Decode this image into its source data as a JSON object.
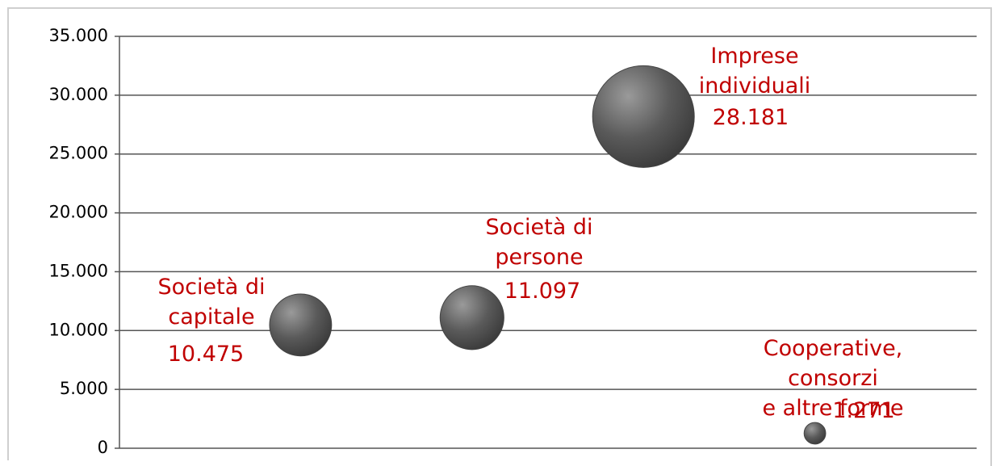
{
  "chart_data": {
    "type": "bubble",
    "categories": [
      "Società di\ncapitale",
      "Società di\npersone",
      "Imprese\nindividuali",
      "Cooperative, consorzi\ne altre forme"
    ],
    "values": [
      10475,
      11097,
      28181,
      1271
    ],
    "value_labels": [
      "10.475",
      "11.097",
      "28.181",
      "1.271"
    ],
    "color": "#5a5a5a",
    "label_color": "#c00000",
    "ylim": [
      0,
      35000
    ],
    "yticks": [
      0,
      {
        "value": 5000,
        "label": "5.000"
      },
      {
        "value": 10000,
        "label": "10.000"
      },
      {
        "value": 15000,
        "label": "15.000"
      },
      {
        "value": 20000,
        "label": "20.000"
      },
      {
        "value": 25000,
        "label": "25.000"
      },
      {
        "value": 30000,
        "label": "30.000"
      },
      {
        "value": 35000,
        "label": "35.000"
      }
    ],
    "grid": true
  }
}
